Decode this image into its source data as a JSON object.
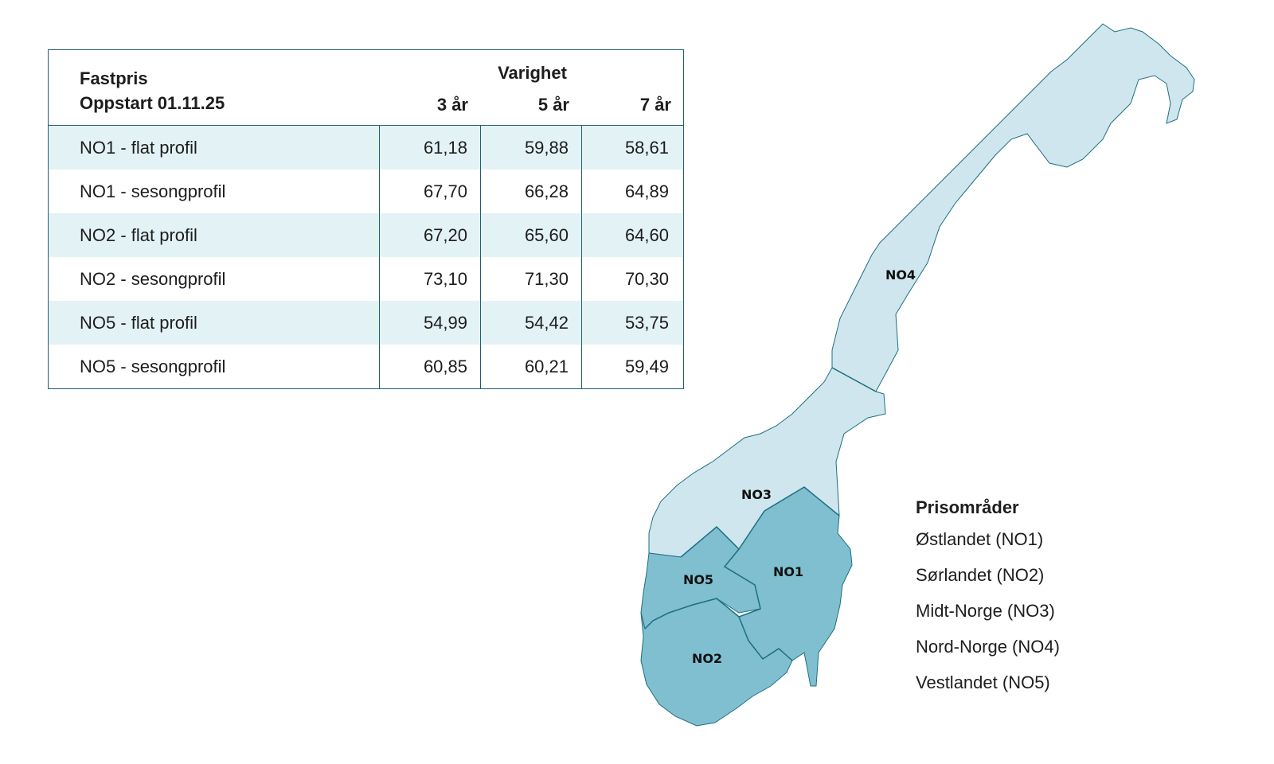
{
  "table": {
    "title_line1": "Fastpris",
    "title_line2": "Oppstart 01.11.25",
    "duration_heading": "Varighet",
    "columns": [
      "3 år",
      "5 år",
      "7 år"
    ],
    "rows": [
      {
        "label": "NO1 - flat profil",
        "values": [
          "61,18",
          "59,88",
          "58,61"
        ]
      },
      {
        "label": "NO1 - sesongprofil",
        "values": [
          "67,70",
          "66,28",
          "64,89"
        ]
      },
      {
        "label": "NO2 - flat profil",
        "values": [
          "67,20",
          "65,60",
          "64,60"
        ]
      },
      {
        "label": "NO2 - sesongprofil",
        "values": [
          "73,10",
          "71,30",
          "70,30"
        ]
      },
      {
        "label": "NO5 - flat profil",
        "values": [
          "54,99",
          "54,42",
          "53,75"
        ]
      },
      {
        "label": "NO5 - sesongprofil",
        "values": [
          "60,85",
          "60,21",
          "59,49"
        ]
      }
    ]
  },
  "map": {
    "region_labels": {
      "no1": "NO1",
      "no2": "NO2",
      "no3": "NO3",
      "no4": "NO4",
      "no5": "NO5"
    },
    "colors": {
      "north_regions": "#cfe6ee",
      "south_regions": "#7fbfcf",
      "border": "#1e6f80"
    }
  },
  "legend": {
    "title": "Prisområder",
    "items": [
      "Østlandet (NO1)",
      "Sørlandet (NO2)",
      "Midt-Norge (NO3)",
      "Nord-Norge (NO4)",
      "Vestlandet (NO5)"
    ]
  }
}
